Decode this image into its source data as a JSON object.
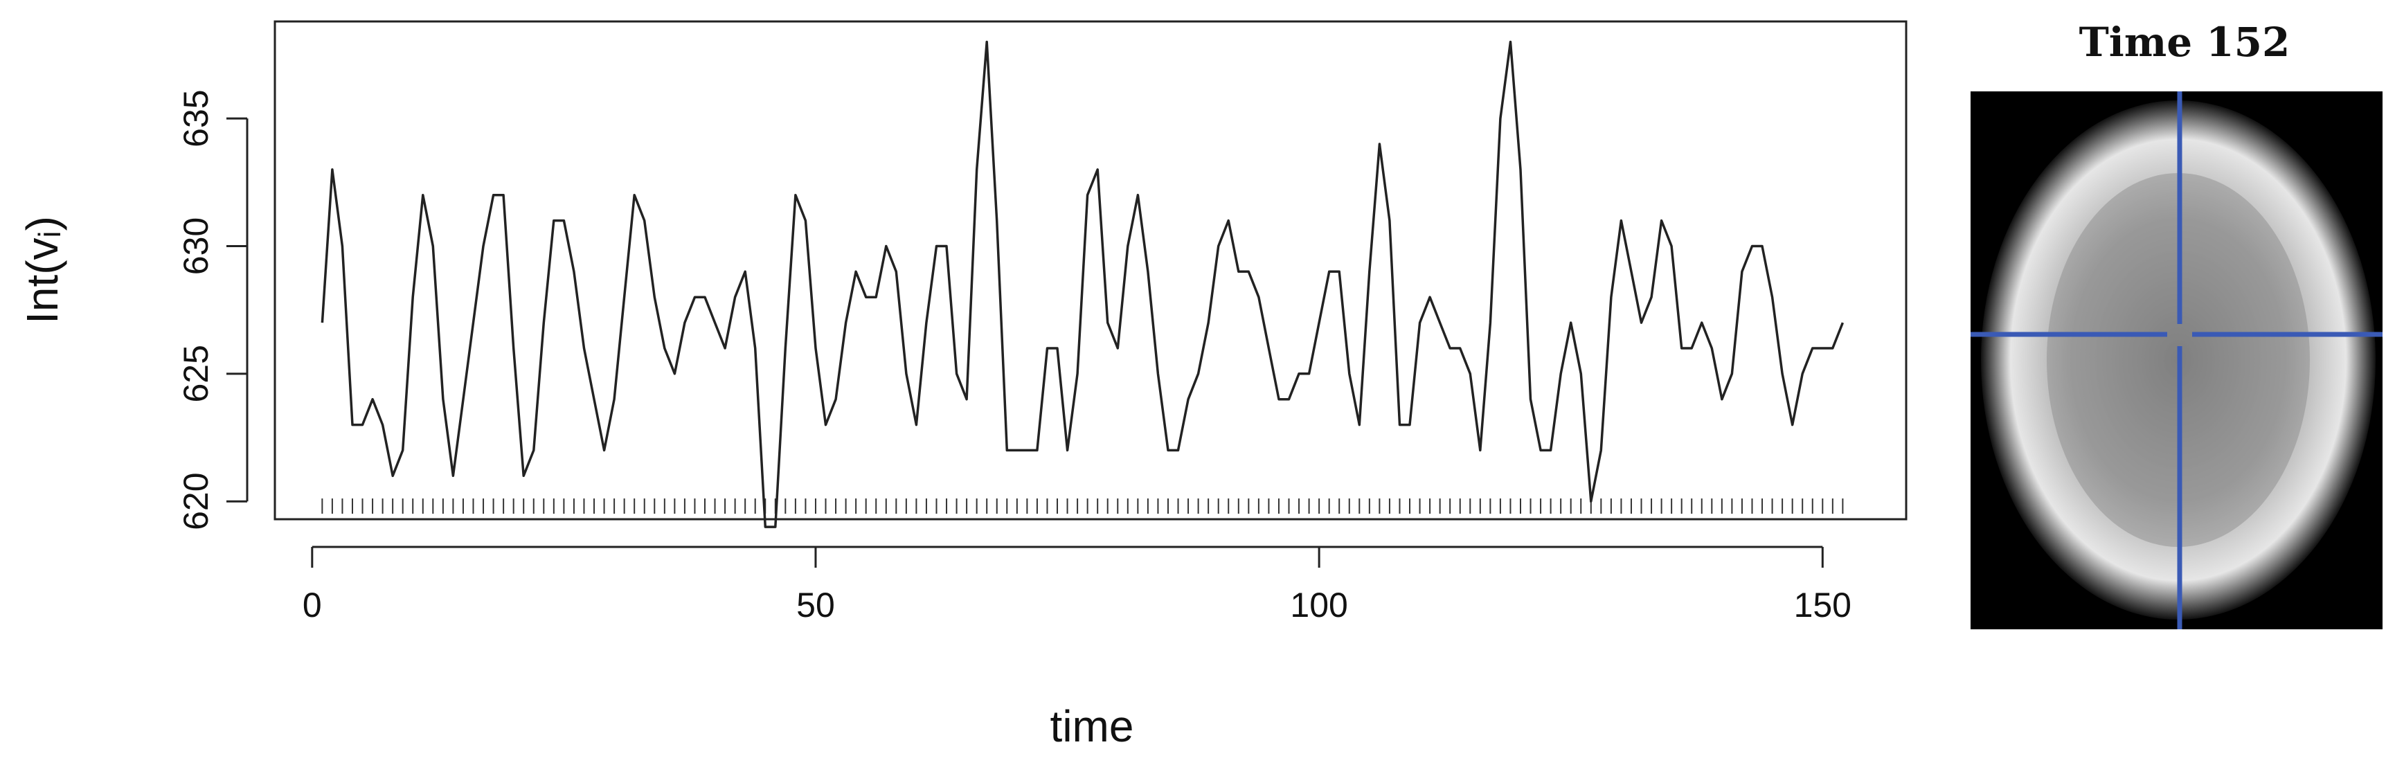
{
  "chart_data": {
    "type": "line",
    "xlabel": "time",
    "ylabel": "Int(vᵢ)",
    "x": [
      1,
      2,
      3,
      4,
      5,
      6,
      7,
      8,
      9,
      10,
      11,
      12,
      13,
      14,
      15,
      16,
      17,
      18,
      19,
      20,
      21,
      22,
      23,
      24,
      25,
      26,
      27,
      28,
      29,
      30,
      31,
      32,
      33,
      34,
      35,
      36,
      37,
      38,
      39,
      40,
      41,
      42,
      43,
      44,
      45,
      46,
      47,
      48,
      49,
      50,
      51,
      52,
      53,
      54,
      55,
      56,
      57,
      58,
      59,
      60,
      61,
      62,
      63,
      64,
      65,
      66,
      67,
      68,
      69,
      70,
      71,
      72,
      73,
      74,
      75,
      76,
      77,
      78,
      79,
      80,
      81,
      82,
      83,
      84,
      85,
      86,
      87,
      88,
      89,
      90,
      91,
      92,
      93,
      94,
      95,
      96,
      97,
      98,
      99,
      100,
      101,
      102,
      103,
      104,
      105,
      106,
      107,
      108,
      109,
      110,
      111,
      112,
      113,
      114,
      115,
      116,
      117,
      118,
      119,
      120,
      121,
      122,
      123,
      124,
      125,
      126,
      127,
      128,
      129,
      130,
      131,
      132,
      133,
      134,
      135,
      136,
      137,
      138,
      139,
      140,
      141,
      142,
      143,
      144,
      145,
      146,
      147,
      148,
      149,
      150,
      151,
      152
    ],
    "values": [
      627,
      633,
      630,
      623,
      623,
      624,
      623,
      621,
      622,
      628,
      632,
      630,
      624,
      621,
      624,
      627,
      630,
      632,
      632,
      626,
      621,
      622,
      627,
      631,
      631,
      629,
      626,
      624,
      622,
      624,
      628,
      632,
      631,
      628,
      626,
      625,
      627,
      628,
      628,
      627,
      626,
      628,
      629,
      626,
      619,
      619,
      626,
      632,
      631,
      626,
      623,
      624,
      627,
      629,
      628,
      628,
      630,
      629,
      625,
      623,
      627,
      630,
      630,
      625,
      624,
      633,
      638,
      631,
      622,
      622,
      622,
      622,
      626,
      626,
      622,
      625,
      632,
      633,
      627,
      626,
      630,
      632,
      629,
      625,
      622,
      622,
      624,
      625,
      627,
      630,
      631,
      629,
      629,
      628,
      626,
      624,
      624,
      625,
      625,
      627,
      629,
      629,
      625,
      623,
      629,
      634,
      631,
      623,
      623,
      627,
      628,
      627,
      626,
      626,
      625,
      622,
      627,
      635,
      638,
      633,
      624,
      622,
      622,
      625,
      627,
      625,
      620,
      622,
      628,
      631,
      629,
      627,
      628,
      631,
      630,
      626,
      626,
      627,
      626,
      624,
      625,
      629,
      630,
      630,
      628,
      625,
      623,
      625,
      626,
      626,
      626,
      627
    ],
    "color": "#222222",
    "rug": true,
    "xlim": [
      -3.7,
      158.3
    ],
    "xticks": [
      0,
      50,
      100,
      150
    ],
    "ylim": [
      619.3,
      638.8
    ],
    "yticks": [
      620,
      625,
      630,
      635
    ]
  },
  "image": {
    "title": "Time 152"
  }
}
